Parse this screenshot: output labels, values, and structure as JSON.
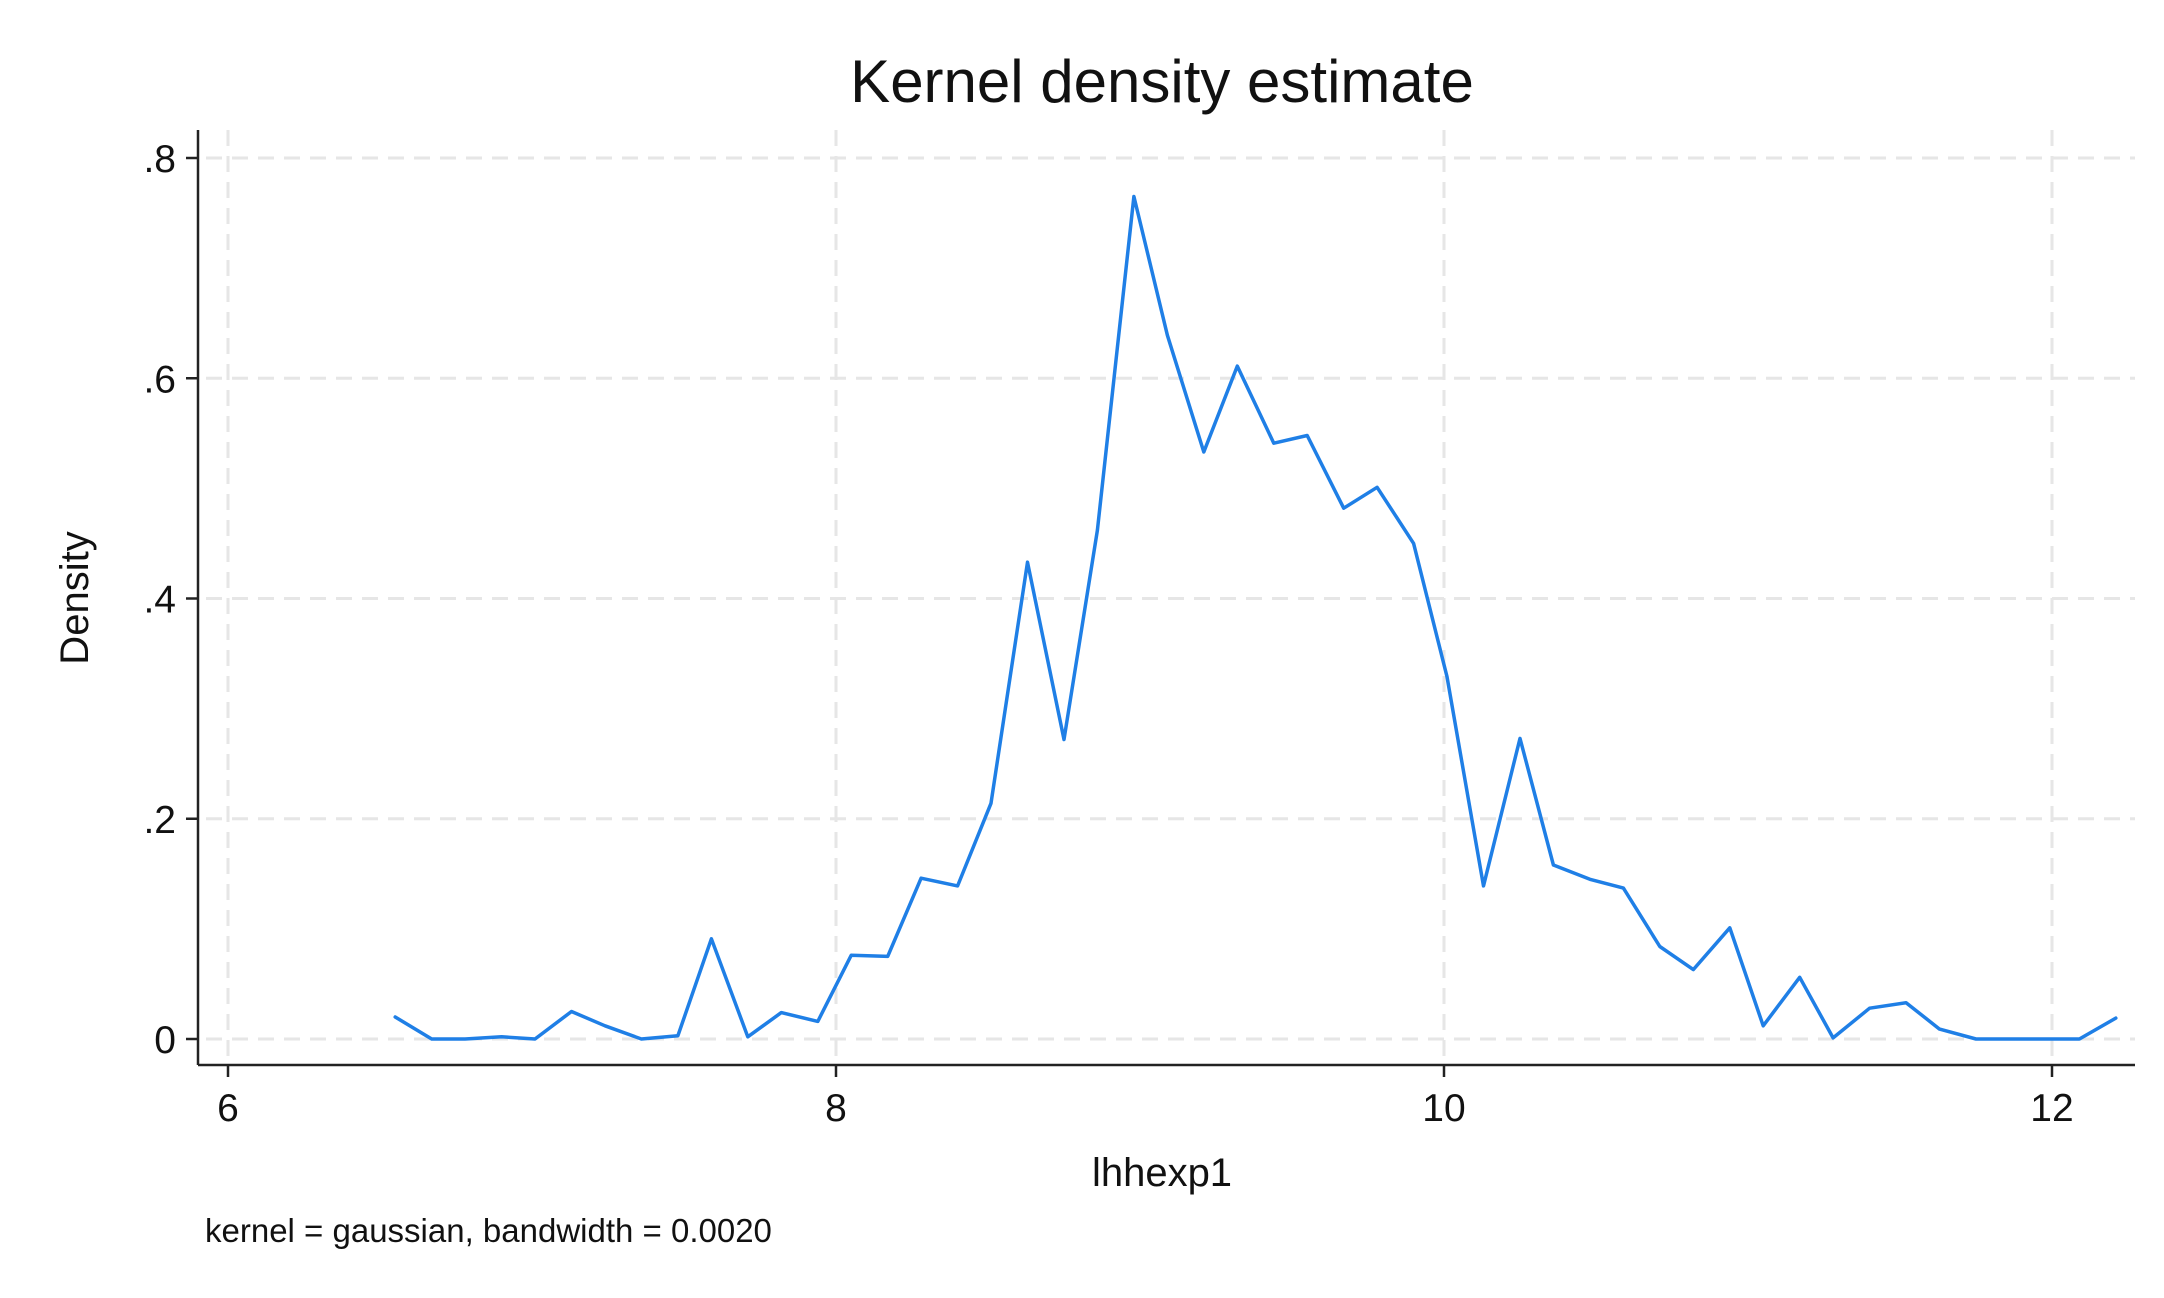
{
  "chart_data": {
    "type": "line",
    "title": "Kernel density estimate",
    "xlabel": "lhhexp1",
    "ylabel": "Density",
    "note": "kernel = gaussian, bandwidth = 0.0020",
    "xlim": [
      6,
      12.3
    ],
    "ylim": [
      0,
      0.8
    ],
    "xticks": [
      6,
      8,
      10,
      12
    ],
    "xtick_labels": [
      "6",
      "8",
      "10",
      "12"
    ],
    "yticks": [
      0,
      0.2,
      0.4,
      0.6,
      0.8
    ],
    "ytick_labels": [
      "0",
      ".2",
      ".4",
      ".6",
      ".8"
    ],
    "grid": true,
    "line_color": "#1f7fe6",
    "series": [
      {
        "x": [
          6.55,
          6.67,
          6.78,
          6.9,
          7.01,
          7.13,
          7.24,
          7.36,
          7.48,
          7.59,
          7.71,
          7.82,
          7.94,
          8.05,
          8.17,
          8.28,
          8.4,
          8.51,
          8.63,
          8.75,
          8.86,
          8.98,
          9.09,
          9.21,
          9.32,
          9.44,
          9.55,
          9.67,
          9.78,
          9.9,
          10.01,
          10.13,
          10.25,
          10.36,
          10.48,
          10.59,
          10.71,
          10.82,
          10.94,
          11.05,
          11.17,
          11.28,
          11.4,
          11.52,
          11.63,
          11.75,
          11.86,
          11.98,
          12.09,
          12.21
        ],
        "y": [
          0.02,
          0.0,
          0.0,
          0.002,
          0.0,
          0.025,
          0.012,
          0.0,
          0.003,
          0.091,
          0.002,
          0.024,
          0.016,
          0.076,
          0.075,
          0.146,
          0.139,
          0.214,
          0.433,
          0.272,
          0.462,
          0.765,
          0.639,
          0.533,
          0.611,
          0.541,
          0.548,
          0.482,
          0.501,
          0.45,
          0.329,
          0.139,
          0.273,
          0.158,
          0.145,
          0.137,
          0.084,
          0.063,
          0.101,
          0.012,
          0.056,
          0.001,
          0.028,
          0.033,
          0.009,
          0.0,
          0.0,
          0.0,
          0.0,
          0.019
        ]
      }
    ]
  }
}
